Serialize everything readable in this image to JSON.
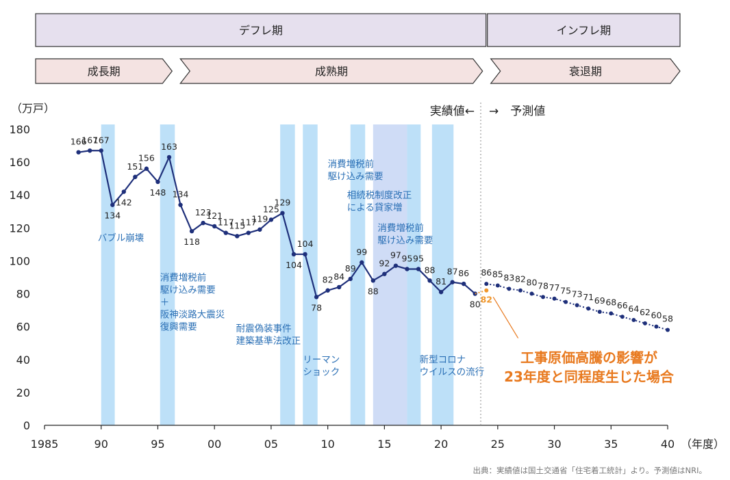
{
  "phases": {
    "top": [
      {
        "label": "デフレ期",
        "from": 1985,
        "to": 2023.5
      },
      {
        "label": "インフレ期",
        "from": 2023.5,
        "to": 2040
      }
    ],
    "mid": [
      {
        "label": "成長期",
        "from": 1985,
        "to": 1997
      },
      {
        "label": "成熟期",
        "from": 1997,
        "to": 2023.5
      },
      {
        "label": "衰退期",
        "from": 2023.5,
        "to": 2040
      }
    ]
  },
  "chart_data": {
    "type": "line",
    "ylabel": "（万戸）",
    "xlabel": "（年度）",
    "ylim": [
      0,
      180
    ],
    "xlim": [
      1985,
      2040
    ],
    "y_ticks": [
      0,
      20,
      40,
      60,
      80,
      100,
      120,
      140,
      160,
      180
    ],
    "x_ticks": [
      {
        "v": 1985,
        "label": "1985"
      },
      {
        "v": 1990,
        "label": "90"
      },
      {
        "v": 1995,
        "label": "95"
      },
      {
        "v": 2000,
        "label": "00"
      },
      {
        "v": 2005,
        "label": "05"
      },
      {
        "v": 2010,
        "label": "10"
      },
      {
        "v": 2015,
        "label": "15"
      },
      {
        "v": 2020,
        "label": "20"
      },
      {
        "v": 2025,
        "label": "25"
      },
      {
        "v": 2030,
        "label": "30"
      },
      {
        "v": 2035,
        "label": "35"
      },
      {
        "v": 2040,
        "label": "40"
      }
    ],
    "divider_x": 2023.5,
    "divider_left_label": "実績値←",
    "divider_right_label": "→　予測値",
    "series": [
      {
        "name": "実績値",
        "color": "#1e2f7a",
        "points": [
          [
            1988,
            166
          ],
          [
            1989,
            167
          ],
          [
            1990,
            167
          ],
          [
            1991,
            134
          ],
          [
            1992,
            142
          ],
          [
            1993,
            151
          ],
          [
            1994,
            156
          ],
          [
            1995,
            148
          ],
          [
            1996,
            163
          ],
          [
            1997,
            134
          ],
          [
            1998,
            118
          ],
          [
            1999,
            123
          ],
          [
            2000,
            121
          ],
          [
            2001,
            117
          ],
          [
            2002,
            115
          ],
          [
            2003,
            117
          ],
          [
            2004,
            119
          ],
          [
            2005,
            125
          ],
          [
            2006,
            129
          ],
          [
            2007,
            104
          ],
          [
            2008,
            104
          ],
          [
            2009,
            78
          ],
          [
            2010,
            82
          ],
          [
            2011,
            84
          ],
          [
            2012,
            89
          ],
          [
            2013,
            99
          ],
          [
            2014,
            88
          ],
          [
            2015,
            92
          ],
          [
            2016,
            97
          ],
          [
            2017,
            95
          ],
          [
            2018,
            95
          ],
          [
            2019,
            88
          ],
          [
            2020,
            81
          ],
          [
            2021,
            87
          ],
          [
            2022,
            86
          ],
          [
            2023,
            80
          ]
        ],
        "labels": [
          [
            1988,
            "166",
            "above"
          ],
          [
            1989,
            "167",
            "above"
          ],
          [
            1990,
            "167",
            "above"
          ],
          [
            1991,
            "134",
            "below"
          ],
          [
            1992,
            "142",
            "below"
          ],
          [
            1993,
            "151",
            "above"
          ],
          [
            1994,
            "156",
            "above"
          ],
          [
            1995,
            "148",
            "below"
          ],
          [
            1996,
            "163",
            "above"
          ],
          [
            1997,
            "134",
            "above"
          ],
          [
            1998,
            "118",
            "below"
          ],
          [
            1999,
            "123",
            "above"
          ],
          [
            2000,
            "121",
            "above"
          ],
          [
            2001,
            "117",
            "above"
          ],
          [
            2002,
            "115",
            "above"
          ],
          [
            2003,
            "117",
            "above"
          ],
          [
            2004,
            "119",
            "above"
          ],
          [
            2005,
            "125",
            "above"
          ],
          [
            2006,
            "129",
            "above"
          ],
          [
            2007,
            "104",
            "below"
          ],
          [
            2008,
            "104",
            "above"
          ],
          [
            2009,
            "78",
            "below"
          ],
          [
            2010,
            "82",
            "above"
          ],
          [
            2011,
            "84",
            "above"
          ],
          [
            2012,
            "89",
            "above"
          ],
          [
            2013,
            "99",
            "above"
          ],
          [
            2014,
            "88",
            "below"
          ],
          [
            2015,
            "92",
            "above"
          ],
          [
            2016,
            "97",
            "above"
          ],
          [
            2017,
            "95",
            "above"
          ],
          [
            2018,
            "95",
            "above"
          ],
          [
            2019,
            "88",
            "above"
          ],
          [
            2020,
            "81",
            "above"
          ],
          [
            2021,
            "87",
            "above"
          ],
          [
            2022,
            "86",
            "above"
          ],
          [
            2023,
            "80",
            "below"
          ]
        ]
      },
      {
        "name": "予測値",
        "color": "#1e2f7a",
        "dotted": true,
        "points": [
          [
            2024,
            86
          ],
          [
            2025,
            85
          ],
          [
            2026,
            83
          ],
          [
            2027,
            82
          ],
          [
            2028,
            80
          ],
          [
            2029,
            78
          ],
          [
            2030,
            77
          ],
          [
            2031,
            75
          ],
          [
            2032,
            73
          ],
          [
            2033,
            71
          ],
          [
            2034,
            69
          ],
          [
            2035,
            68
          ],
          [
            2036,
            66
          ],
          [
            2037,
            64
          ],
          [
            2038,
            62
          ],
          [
            2039,
            60
          ],
          [
            2040,
            58
          ]
        ],
        "labels": [
          [
            2024,
            "86"
          ],
          [
            2025,
            "85"
          ],
          [
            2026,
            "83"
          ],
          [
            2027,
            "82"
          ],
          [
            2028,
            "80"
          ],
          [
            2029,
            "78"
          ],
          [
            2030,
            "77"
          ],
          [
            2031,
            "75"
          ],
          [
            2032,
            "73"
          ],
          [
            2033,
            "71"
          ],
          [
            2034,
            "69"
          ],
          [
            2035,
            "68"
          ],
          [
            2036,
            "66"
          ],
          [
            2037,
            "64"
          ],
          [
            2038,
            "62"
          ],
          [
            2039,
            "60"
          ],
          [
            2040,
            "58"
          ]
        ]
      },
      {
        "name": "工事原価高騰の影響が23年度と同程度生じた場合",
        "color": "#f0962a",
        "points": [
          [
            2023,
            80
          ],
          [
            2024,
            82
          ]
        ],
        "labels": [
          [
            2024,
            "82"
          ]
        ]
      }
    ],
    "shaded_bands": [
      [
        1990,
        1991.2
      ],
      [
        1995.2,
        1996.5
      ],
      [
        2005.8,
        2007.1
      ],
      [
        2007.8,
        2009.1
      ],
      [
        2012,
        2013.3
      ],
      [
        2014,
        2017
      ],
      [
        2017,
        2018.2
      ],
      [
        2019.2,
        2021.1
      ]
    ],
    "annotations": [
      {
        "lines": [
          "バブル崩壊"
        ],
        "x": 1989.7,
        "y": 112
      },
      {
        "lines": [
          "消費増税前",
          "駆け込み需要",
          "＋",
          "阪神淡路大震災",
          "復興需要"
        ],
        "x": 1995.2,
        "y": 88
      },
      {
        "lines": [
          "耐震偽装事件",
          "建築基準法改正"
        ],
        "x": 2001.9,
        "y": 57
      },
      {
        "lines": [
          "リーマン",
          "ショック"
        ],
        "x": 2007.8,
        "y": 38
      },
      {
        "lines": [
          "消費増税前",
          "駆け込み需要"
        ],
        "x": 2010,
        "y": 157
      },
      {
        "lines": [
          "相続税制度改正",
          "による貸家増"
        ],
        "x": 2011.7,
        "y": 138
      },
      {
        "lines": [
          "消費増税前",
          "駆け込み需要"
        ],
        "x": 2014.4,
        "y": 118
      },
      {
        "lines": [
          "新型コロナ",
          "ウイルスの流行"
        ],
        "x": 2018.1,
        "y": 38
      }
    ],
    "callout": {
      "lines": [
        "工事原価高騰の影響が",
        "23年度と同程度生じた場合"
      ],
      "color": "#e8791e"
    }
  },
  "source": "出典：実績値は国土交通省「住宅着工統計」より。予測値はNRI。",
  "colors": {
    "top_band": "#e6e0ee",
    "mid_band": "#f4e3e2",
    "band_stroke": "#333333",
    "shade": "#bde0f8",
    "shade_alt": "#cfdcf6",
    "annotation_text": "#2a6fb5",
    "axis_text": "#222222"
  }
}
